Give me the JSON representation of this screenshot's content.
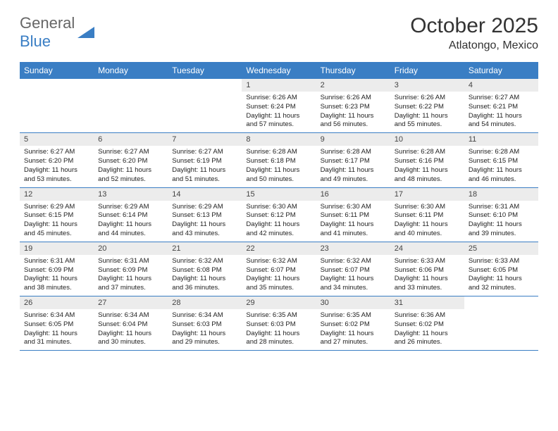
{
  "logo": {
    "general": "General",
    "blue": "Blue"
  },
  "title": "October 2025",
  "location": "Atlatongo, Mexico",
  "header_bg": "#3a7ec4",
  "daynum_bg": "#ececec",
  "text_color": "#333333",
  "dayNames": [
    "Sunday",
    "Monday",
    "Tuesday",
    "Wednesday",
    "Thursday",
    "Friday",
    "Saturday"
  ],
  "weeks": [
    [
      {
        "day": "",
        "sunrise": "",
        "sunset": "",
        "daylight": "",
        "empty": true
      },
      {
        "day": "",
        "sunrise": "",
        "sunset": "",
        "daylight": "",
        "empty": true
      },
      {
        "day": "",
        "sunrise": "",
        "sunset": "",
        "daylight": "",
        "empty": true
      },
      {
        "day": "1",
        "sunrise": "Sunrise: 6:26 AM",
        "sunset": "Sunset: 6:24 PM",
        "daylight": "Daylight: 11 hours and 57 minutes."
      },
      {
        "day": "2",
        "sunrise": "Sunrise: 6:26 AM",
        "sunset": "Sunset: 6:23 PM",
        "daylight": "Daylight: 11 hours and 56 minutes."
      },
      {
        "day": "3",
        "sunrise": "Sunrise: 6:26 AM",
        "sunset": "Sunset: 6:22 PM",
        "daylight": "Daylight: 11 hours and 55 minutes."
      },
      {
        "day": "4",
        "sunrise": "Sunrise: 6:27 AM",
        "sunset": "Sunset: 6:21 PM",
        "daylight": "Daylight: 11 hours and 54 minutes."
      }
    ],
    [
      {
        "day": "5",
        "sunrise": "Sunrise: 6:27 AM",
        "sunset": "Sunset: 6:20 PM",
        "daylight": "Daylight: 11 hours and 53 minutes."
      },
      {
        "day": "6",
        "sunrise": "Sunrise: 6:27 AM",
        "sunset": "Sunset: 6:20 PM",
        "daylight": "Daylight: 11 hours and 52 minutes."
      },
      {
        "day": "7",
        "sunrise": "Sunrise: 6:27 AM",
        "sunset": "Sunset: 6:19 PM",
        "daylight": "Daylight: 11 hours and 51 minutes."
      },
      {
        "day": "8",
        "sunrise": "Sunrise: 6:28 AM",
        "sunset": "Sunset: 6:18 PM",
        "daylight": "Daylight: 11 hours and 50 minutes."
      },
      {
        "day": "9",
        "sunrise": "Sunrise: 6:28 AM",
        "sunset": "Sunset: 6:17 PM",
        "daylight": "Daylight: 11 hours and 49 minutes."
      },
      {
        "day": "10",
        "sunrise": "Sunrise: 6:28 AM",
        "sunset": "Sunset: 6:16 PM",
        "daylight": "Daylight: 11 hours and 48 minutes."
      },
      {
        "day": "11",
        "sunrise": "Sunrise: 6:28 AM",
        "sunset": "Sunset: 6:15 PM",
        "daylight": "Daylight: 11 hours and 46 minutes."
      }
    ],
    [
      {
        "day": "12",
        "sunrise": "Sunrise: 6:29 AM",
        "sunset": "Sunset: 6:15 PM",
        "daylight": "Daylight: 11 hours and 45 minutes."
      },
      {
        "day": "13",
        "sunrise": "Sunrise: 6:29 AM",
        "sunset": "Sunset: 6:14 PM",
        "daylight": "Daylight: 11 hours and 44 minutes."
      },
      {
        "day": "14",
        "sunrise": "Sunrise: 6:29 AM",
        "sunset": "Sunset: 6:13 PM",
        "daylight": "Daylight: 11 hours and 43 minutes."
      },
      {
        "day": "15",
        "sunrise": "Sunrise: 6:30 AM",
        "sunset": "Sunset: 6:12 PM",
        "daylight": "Daylight: 11 hours and 42 minutes."
      },
      {
        "day": "16",
        "sunrise": "Sunrise: 6:30 AM",
        "sunset": "Sunset: 6:11 PM",
        "daylight": "Daylight: 11 hours and 41 minutes."
      },
      {
        "day": "17",
        "sunrise": "Sunrise: 6:30 AM",
        "sunset": "Sunset: 6:11 PM",
        "daylight": "Daylight: 11 hours and 40 minutes."
      },
      {
        "day": "18",
        "sunrise": "Sunrise: 6:31 AM",
        "sunset": "Sunset: 6:10 PM",
        "daylight": "Daylight: 11 hours and 39 minutes."
      }
    ],
    [
      {
        "day": "19",
        "sunrise": "Sunrise: 6:31 AM",
        "sunset": "Sunset: 6:09 PM",
        "daylight": "Daylight: 11 hours and 38 minutes."
      },
      {
        "day": "20",
        "sunrise": "Sunrise: 6:31 AM",
        "sunset": "Sunset: 6:09 PM",
        "daylight": "Daylight: 11 hours and 37 minutes."
      },
      {
        "day": "21",
        "sunrise": "Sunrise: 6:32 AM",
        "sunset": "Sunset: 6:08 PM",
        "daylight": "Daylight: 11 hours and 36 minutes."
      },
      {
        "day": "22",
        "sunrise": "Sunrise: 6:32 AM",
        "sunset": "Sunset: 6:07 PM",
        "daylight": "Daylight: 11 hours and 35 minutes."
      },
      {
        "day": "23",
        "sunrise": "Sunrise: 6:32 AM",
        "sunset": "Sunset: 6:07 PM",
        "daylight": "Daylight: 11 hours and 34 minutes."
      },
      {
        "day": "24",
        "sunrise": "Sunrise: 6:33 AM",
        "sunset": "Sunset: 6:06 PM",
        "daylight": "Daylight: 11 hours and 33 minutes."
      },
      {
        "day": "25",
        "sunrise": "Sunrise: 6:33 AM",
        "sunset": "Sunset: 6:05 PM",
        "daylight": "Daylight: 11 hours and 32 minutes."
      }
    ],
    [
      {
        "day": "26",
        "sunrise": "Sunrise: 6:34 AM",
        "sunset": "Sunset: 6:05 PM",
        "daylight": "Daylight: 11 hours and 31 minutes."
      },
      {
        "day": "27",
        "sunrise": "Sunrise: 6:34 AM",
        "sunset": "Sunset: 6:04 PM",
        "daylight": "Daylight: 11 hours and 30 minutes."
      },
      {
        "day": "28",
        "sunrise": "Sunrise: 6:34 AM",
        "sunset": "Sunset: 6:03 PM",
        "daylight": "Daylight: 11 hours and 29 minutes."
      },
      {
        "day": "29",
        "sunrise": "Sunrise: 6:35 AM",
        "sunset": "Sunset: 6:03 PM",
        "daylight": "Daylight: 11 hours and 28 minutes."
      },
      {
        "day": "30",
        "sunrise": "Sunrise: 6:35 AM",
        "sunset": "Sunset: 6:02 PM",
        "daylight": "Daylight: 11 hours and 27 minutes."
      },
      {
        "day": "31",
        "sunrise": "Sunrise: 6:36 AM",
        "sunset": "Sunset: 6:02 PM",
        "daylight": "Daylight: 11 hours and 26 minutes."
      },
      {
        "day": "",
        "sunrise": "",
        "sunset": "",
        "daylight": "",
        "empty": true
      }
    ]
  ]
}
